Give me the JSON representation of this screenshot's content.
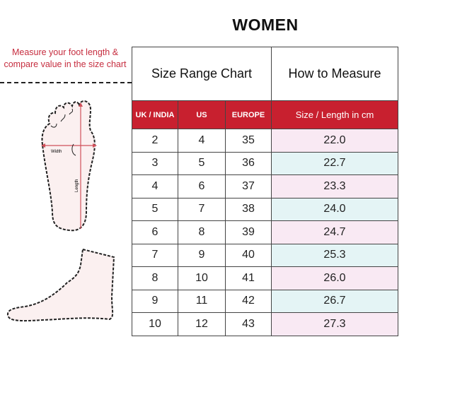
{
  "title": "WOMEN",
  "note": "Measure your foot length & compare value in the size chart",
  "diagram": {
    "width_label": "Width",
    "length_label": "Length"
  },
  "table": {
    "section_left": "Size Range Chart",
    "section_right": "How to Measure",
    "headers": [
      "UK / INDIA",
      "US",
      "EUROPE",
      "Size / Length in cm"
    ],
    "rows": [
      [
        "2",
        "4",
        "35",
        "22.0"
      ],
      [
        "3",
        "5",
        "36",
        "22.7"
      ],
      [
        "4",
        "6",
        "37",
        "23.3"
      ],
      [
        "5",
        "7",
        "38",
        "24.0"
      ],
      [
        "6",
        "8",
        "39",
        "24.7"
      ],
      [
        "7",
        "9",
        "40",
        "25.3"
      ],
      [
        "8",
        "10",
        "41",
        "26.0"
      ],
      [
        "9",
        "11",
        "42",
        "26.7"
      ],
      [
        "10",
        "12",
        "43",
        "27.3"
      ]
    ]
  },
  "colors": {
    "header": "#c8202f",
    "accent_text": "#c62d3f",
    "cell_pink": "#f9e9f3",
    "cell_cyan": "#e4f4f5"
  }
}
